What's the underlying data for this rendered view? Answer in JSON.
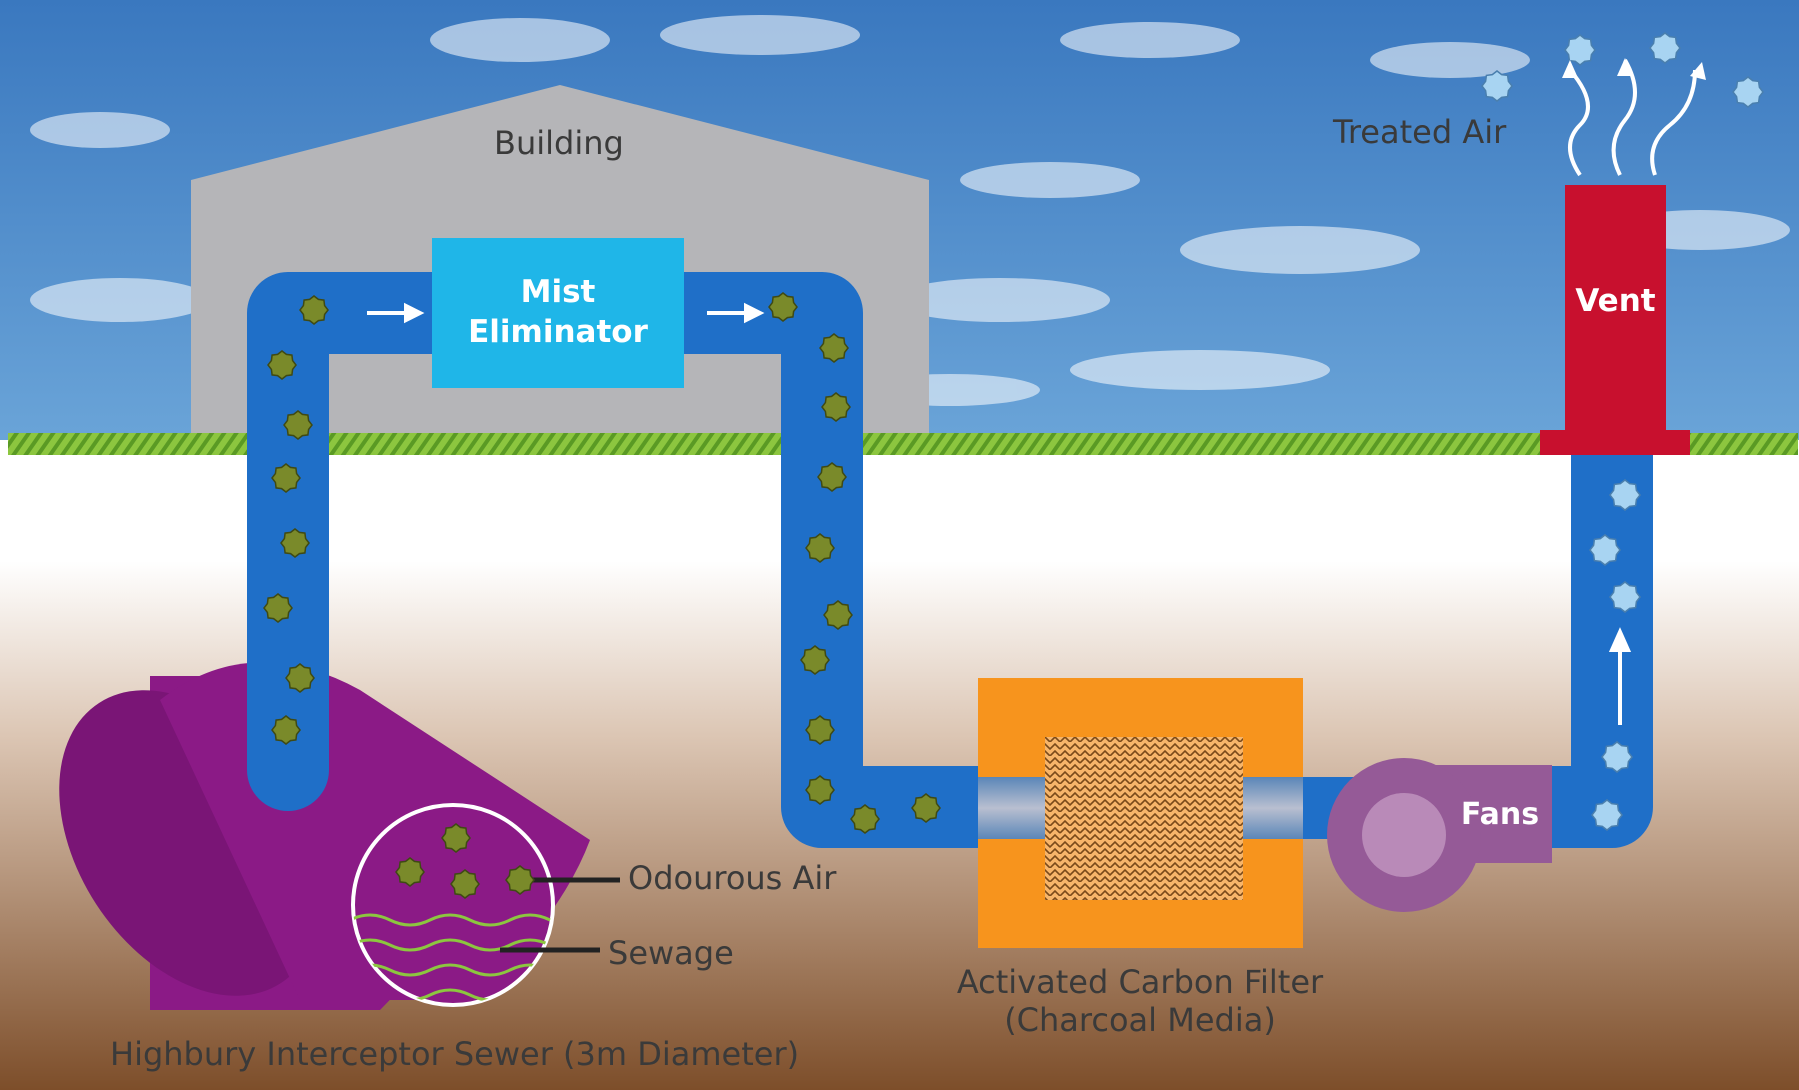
{
  "labels": {
    "building": "Building",
    "mist_line1": "Mist",
    "mist_line2": "Eliminator",
    "treated_air": "Treated Air",
    "vent": "Vent",
    "fans": "Fans",
    "odourous_air": "Odourous Air",
    "sewage": "Sewage",
    "carbon_line1": "Activated Carbon Filter",
    "carbon_line2": "(Charcoal Media)",
    "sewer": "Highbury Interceptor Sewer (3m Diameter)"
  },
  "colors": {
    "sky": "#3f7fc2",
    "building": "#b5b5b8",
    "pipe": "#1f6fc8",
    "mist_eliminator": "#1fb6e8",
    "vent": "#c8102e",
    "carbon_filter": "#f7941d",
    "fan": "#955a97",
    "sewer": "#8b1a86",
    "odour_particle": "#7a8a2a",
    "treated_particle": "#a8d4f2",
    "grass": "#6fae2e",
    "ground_top": "#ffffff",
    "ground_bottom": "#8a5a34"
  },
  "icons": [
    "odour-particle-icon",
    "treated-air-particle-icon",
    "flow-arrow-icon",
    "fan-icon",
    "cloud-icon"
  ]
}
